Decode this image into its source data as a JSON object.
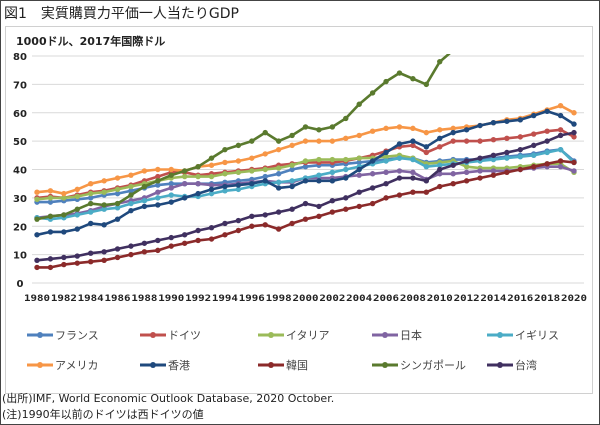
{
  "title": "図1　実質購買力平価一人当たりGDP",
  "chart_data": {
    "type": "line",
    "unit_label": "1000ドル、2017年国際ドル",
    "ylim": [
      0,
      80
    ],
    "yticks": [
      0,
      10,
      20,
      30,
      40,
      50,
      60,
      70,
      80
    ],
    "x": [
      1980,
      1981,
      1982,
      1983,
      1984,
      1985,
      1986,
      1987,
      1988,
      1989,
      1990,
      1991,
      1992,
      1993,
      1994,
      1995,
      1996,
      1997,
      1998,
      1999,
      2000,
      2001,
      2002,
      2003,
      2004,
      2005,
      2006,
      2007,
      2008,
      2009,
      2010,
      2011,
      2012,
      2013,
      2014,
      2015,
      2016,
      2017,
      2018,
      2019,
      2020
    ],
    "xticks": [
      "1980",
      "1982",
      "1984",
      "1986",
      "1988",
      "1990",
      "1992",
      "1994",
      "1996",
      "1998",
      "2000",
      "2002",
      "2004",
      "2006",
      "2008",
      "2010",
      "2012",
      "2014",
      "2016",
      "2018",
      "2020"
    ],
    "grid": true,
    "legend_position": "bottom",
    "series": [
      {
        "name": "フランス",
        "color": "#4f81bd",
        "values": [
          28.5,
          28.5,
          29,
          29.5,
          30,
          31,
          31.5,
          32.5,
          33.5,
          34.5,
          35,
          35,
          35,
          35,
          35.5,
          36,
          36.5,
          37.5,
          38.5,
          40,
          41,
          41.5,
          41.5,
          42,
          42.5,
          43,
          43.5,
          44,
          44,
          42.5,
          43,
          43.5,
          43.5,
          43.5,
          44,
          44.5,
          45,
          45.5,
          46.5,
          47,
          43
        ]
      },
      {
        "name": "ドイツ",
        "color": "#c0504d",
        "values": [
          30,
          30.5,
          30,
          31,
          32,
          32.5,
          33.5,
          34.5,
          36,
          37.5,
          39,
          39,
          38,
          38.5,
          39,
          39.5,
          40,
          40.5,
          41.5,
          42,
          42.5,
          42.5,
          42.5,
          43,
          44,
          45,
          46.5,
          48,
          48.5,
          46,
          48,
          50,
          50,
          50,
          50.5,
          51,
          51.5,
          52.5,
          53.5,
          54,
          51.5
        ]
      },
      {
        "name": "イタリア",
        "color": "#9bbb59",
        "values": [
          29.5,
          30,
          30,
          30.5,
          31.5,
          32,
          33,
          34,
          35,
          36,
          37,
          37.5,
          37.5,
          37.5,
          38.5,
          39,
          39.5,
          40,
          40.5,
          41.5,
          43,
          43.5,
          43.5,
          43.5,
          44,
          44,
          44.5,
          45,
          44,
          42,
          42.5,
          43,
          41,
          40.5,
          40.5,
          40.5,
          41,
          41.5,
          42,
          42,
          39
        ]
      },
      {
        "name": "日本",
        "color": "#8064a2",
        "values": [
          23,
          23.5,
          24,
          24.5,
          25.5,
          27,
          28,
          29,
          30,
          32,
          33.5,
          35,
          35,
          34.5,
          34.5,
          35,
          35.5,
          36,
          35.5,
          35.5,
          37,
          37,
          37,
          37.5,
          38,
          38.5,
          39,
          39.5,
          39,
          36.5,
          38.5,
          38.5,
          39,
          39.5,
          39.5,
          39.5,
          40,
          40.5,
          41,
          41,
          39.5
        ]
      },
      {
        "name": "イギリス",
        "color": "#4bacc6",
        "values": [
          23,
          22.5,
          23,
          24,
          25,
          26,
          26.5,
          28,
          29,
          30,
          31,
          30.5,
          30.5,
          31.5,
          32.5,
          33,
          34,
          35,
          35.5,
          36,
          37,
          38,
          39,
          40,
          41,
          42,
          43,
          44,
          43.5,
          41,
          41.5,
          42,
          42.5,
          43,
          43.5,
          44,
          44.5,
          45,
          46,
          47,
          42.5
        ]
      },
      {
        "name": "アメリカ",
        "color": "#f79646",
        "values": [
          32,
          32.5,
          31.5,
          33,
          35,
          36,
          37,
          38,
          39.5,
          40,
          40,
          39.5,
          41,
          41.5,
          42.5,
          43,
          44,
          45.5,
          47,
          48.5,
          50,
          50,
          50,
          51,
          52,
          53.5,
          54.5,
          55,
          54.5,
          53,
          54,
          54.5,
          55,
          55.5,
          56.5,
          57.5,
          58,
          59.5,
          61,
          62.5,
          60
        ]
      },
      {
        "name": "香港",
        "color": "#1f497d",
        "values": [
          17,
          18,
          18,
          19,
          21,
          20.5,
          22.5,
          25.5,
          27,
          27.5,
          28.5,
          30,
          31.5,
          33,
          34,
          34.5,
          35,
          36,
          33.5,
          34,
          36,
          36,
          36,
          37,
          40,
          43,
          46,
          49,
          50,
          48,
          51,
          53,
          54,
          55.5,
          56.5,
          57,
          57.5,
          59,
          60.5,
          59,
          56
        ]
      },
      {
        "name": "韓国",
        "color": "#8b2a2a",
        "values": [
          5.5,
          5.5,
          6.5,
          7,
          7.5,
          8,
          9,
          10,
          11,
          11.5,
          13,
          14,
          15,
          15.5,
          17,
          18.5,
          20,
          20.5,
          19,
          21,
          22.5,
          23.5,
          25,
          26,
          27,
          28,
          30,
          31,
          32,
          32,
          34,
          35,
          36,
          37,
          38,
          39,
          40,
          41,
          42,
          43,
          42.5
        ]
      },
      {
        "name": "シンガポール",
        "color": "#5a7a2e",
        "values": [
          22.5,
          23.5,
          24,
          26,
          28,
          27.5,
          28,
          31,
          34,
          36,
          38,
          39.5,
          41,
          44,
          47,
          48.5,
          50,
          53,
          50,
          52,
          55,
          54,
          55,
          58,
          63,
          67,
          71,
          74,
          72,
          70,
          78,
          82,
          null,
          null,
          null,
          null,
          null,
          null,
          null,
          null,
          null
        ]
      },
      {
        "name": "台湾",
        "color": "#403060",
        "values": [
          8,
          8.5,
          9,
          9.5,
          10.5,
          11,
          12,
          13,
          14,
          15,
          16,
          17,
          18.5,
          19.5,
          21,
          22,
          23.5,
          24,
          25,
          26,
          28,
          27,
          29,
          30,
          32,
          33.5,
          35,
          37,
          37,
          36,
          40,
          41.5,
          43,
          44,
          45,
          46,
          47,
          48.5,
          50,
          52,
          53
        ]
      }
    ]
  },
  "notes": {
    "source": "(出所)IMF, World Economic Outlook Database, 2020 October.",
    "note": "(注)1990年以前のドイツは西ドイツの値"
  }
}
